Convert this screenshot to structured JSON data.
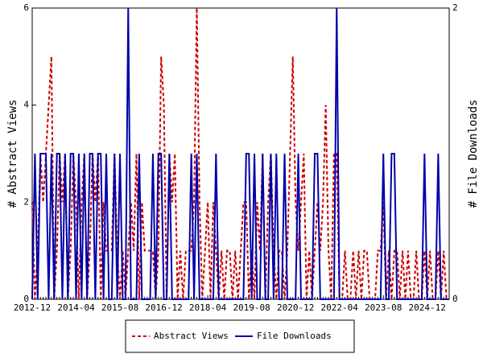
{
  "chart_data": {
    "type": "line",
    "y_label": "# Abstract Views",
    "y2_label": "# File Downloads",
    "x": [
      "2012-12",
      null,
      null,
      null,
      null,
      null,
      null,
      null,
      null,
      null,
      null,
      null,
      null,
      null,
      null,
      null,
      "2014-04",
      null,
      null,
      null,
      null,
      null,
      null,
      null,
      null,
      null,
      null,
      null,
      null,
      null,
      null,
      null,
      "2015-08",
      null,
      null,
      null,
      null,
      null,
      null,
      null,
      null,
      null,
      null,
      null,
      null,
      null,
      null,
      null,
      "2016-12",
      null,
      null,
      null,
      null,
      null,
      null,
      null,
      null,
      null,
      null,
      null,
      null,
      null,
      null,
      null,
      "2018-04",
      null,
      null,
      null,
      null,
      null,
      null,
      null,
      null,
      null,
      null,
      null,
      null,
      null,
      null,
      null,
      "2019-08",
      null,
      null,
      null,
      null,
      null,
      null,
      null,
      null,
      null,
      null,
      null,
      null,
      null,
      null,
      null,
      "2020-12",
      null,
      null,
      null,
      null,
      null,
      null,
      null,
      null,
      null,
      null,
      null,
      null,
      null,
      null,
      null,
      "2022-04",
      null,
      null,
      null,
      null,
      null,
      null,
      null,
      null,
      null,
      null,
      null,
      null,
      null,
      null,
      null,
      "2023-08",
      null,
      null,
      null,
      null,
      null,
      null,
      null,
      null,
      null,
      null,
      null,
      null,
      null,
      null,
      null,
      "2024-12",
      null,
      null,
      null,
      null,
      null,
      null,
      null,
      null
    ],
    "series": [
      {
        "name": "Abstract Views",
        "color": "#cc0000",
        "dash": true,
        "values": [
          2,
          0,
          1,
          3,
          2,
          3,
          4,
          5,
          0,
          1,
          3,
          2,
          3,
          0,
          1,
          3,
          2,
          0,
          2,
          3,
          0,
          1,
          3,
          2,
          3,
          0,
          2,
          1,
          1,
          1,
          3,
          1,
          0,
          1,
          0,
          1,
          2,
          1,
          3,
          0,
          2,
          1,
          1,
          1,
          1,
          0,
          1,
          5,
          4,
          0,
          3,
          2,
          3,
          0,
          1,
          0,
          1,
          1,
          1,
          2,
          6,
          2,
          0,
          1,
          2,
          0,
          2,
          1,
          0,
          1,
          0,
          1,
          1,
          0,
          1,
          0,
          1,
          2,
          2,
          0,
          1,
          0,
          2,
          1,
          3,
          0,
          2,
          3,
          1,
          0,
          1,
          1,
          0,
          1,
          3,
          5,
          2,
          1,
          2,
          3,
          0,
          1,
          0,
          1,
          2,
          1,
          2,
          4,
          1,
          0,
          3,
          3,
          0,
          0,
          1,
          0,
          0,
          1,
          0,
          1,
          0,
          1,
          1,
          0,
          0,
          0,
          1,
          1,
          2,
          0,
          1,
          0,
          1,
          1,
          0,
          1,
          0,
          1,
          0,
          0,
          1,
          0,
          0,
          1,
          0,
          1,
          0,
          0,
          1,
          0,
          1,
          0,
          0
        ]
      },
      {
        "name": "File Downloads",
        "color": "#0000aa",
        "dash": false,
        "axis": "y2",
        "values": [
          0,
          1,
          0,
          1,
          1,
          1,
          0,
          1,
          0,
          1,
          1,
          0,
          1,
          0,
          1,
          1,
          0,
          1,
          0,
          1,
          0,
          1,
          1,
          0,
          1,
          1,
          0,
          1,
          0,
          0,
          1,
          0,
          1,
          0,
          0,
          2,
          0,
          0,
          0,
          1,
          0,
          0,
          0,
          0,
          1,
          0,
          1,
          1,
          0,
          0,
          1,
          0,
          0,
          0,
          0,
          0,
          0,
          0,
          1,
          0,
          1,
          0,
          0,
          0,
          0,
          0,
          0,
          1,
          0,
          0,
          0,
          0,
          0,
          0,
          0,
          0,
          0,
          0,
          1,
          1,
          0,
          1,
          0,
          0,
          1,
          0,
          0,
          1,
          0,
          1,
          0,
          0,
          1,
          0,
          0,
          0,
          0,
          1,
          0,
          0,
          0,
          0,
          0,
          1,
          1,
          0,
          0,
          0,
          0,
          0,
          0,
          2,
          0,
          0,
          0,
          0,
          0,
          0,
          0,
          0,
          0,
          0,
          0,
          0,
          0,
          0,
          0,
          0,
          1,
          0,
          0,
          1,
          1,
          0,
          0,
          0,
          0,
          0,
          0,
          0,
          0,
          0,
          0,
          1,
          0,
          0,
          0,
          0,
          1,
          0,
          0,
          0,
          0
        ]
      }
    ],
    "ylim": [
      0,
      6
    ],
    "yticks": [
      0,
      2,
      4,
      6
    ],
    "y2lim": [
      0,
      2
    ],
    "y2ticks": [
      0,
      2
    ],
    "legend": "bottom"
  }
}
